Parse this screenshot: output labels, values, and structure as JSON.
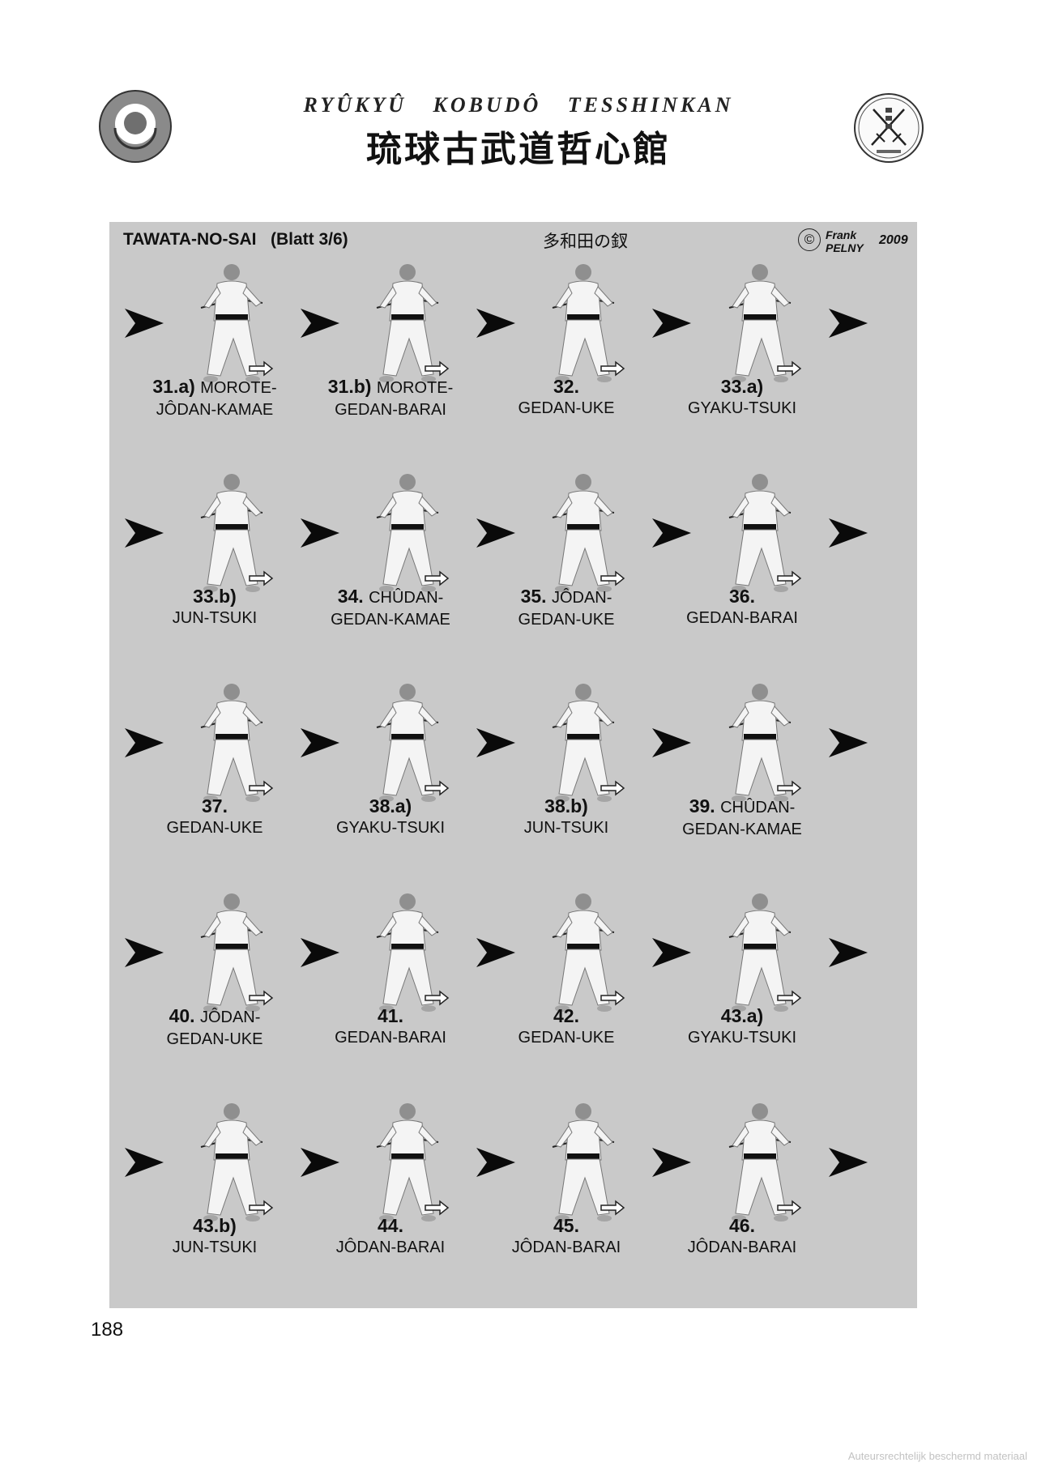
{
  "header": {
    "title": "RYÛKYÛ KOBUDÔ TESSHINKAN",
    "kanji": "琉球古武道哲心館"
  },
  "sheet": {
    "title": "TAWATA-NO-SAI   (Blatt 3/6)",
    "title_jp": "多和田の釵",
    "copyright_symbol": "©",
    "author_first": "Frank",
    "author_last": "PELNY",
    "year": "2009"
  },
  "rows": [
    {
      "steps": [
        {
          "num": "31.a)",
          "move": "MOROTE-",
          "name": "JÔDAN-KAMAE"
        },
        {
          "num": "31.b)",
          "move": "MOROTE-",
          "name": "GEDAN-BARAI"
        },
        {
          "num": "32.",
          "move": "",
          "name": "GEDAN-UKE"
        },
        {
          "num": "33.a)",
          "move": "",
          "name": "GYAKU-TSUKI"
        }
      ]
    },
    {
      "steps": [
        {
          "num": "33.b)",
          "move": "",
          "name": "JUN-TSUKI"
        },
        {
          "num": "34.",
          "move": "CHÛDAN-",
          "name": "GEDAN-KAMAE"
        },
        {
          "num": "35.",
          "move": "JÔDAN-",
          "name": "GEDAN-UKE"
        },
        {
          "num": "36.",
          "move": "",
          "name": "GEDAN-BARAI"
        }
      ]
    },
    {
      "steps": [
        {
          "num": "37.",
          "move": "",
          "name": "GEDAN-UKE"
        },
        {
          "num": "38.a)",
          "move": "",
          "name": "GYAKU-TSUKI"
        },
        {
          "num": "38.b)",
          "move": "",
          "name": "JUN-TSUKI"
        },
        {
          "num": "39.",
          "move": "CHÛDAN-",
          "name": "GEDAN-KAMAE"
        }
      ]
    },
    {
      "steps": [
        {
          "num": "40.",
          "move": "JÔDAN-",
          "name": "GEDAN-UKE"
        },
        {
          "num": "41.",
          "move": "",
          "name": "GEDAN-BARAI"
        },
        {
          "num": "42.",
          "move": "",
          "name": "GEDAN-UKE"
        },
        {
          "num": "43.a)",
          "move": "",
          "name": "GYAKU-TSUKI"
        }
      ]
    },
    {
      "steps": [
        {
          "num": "43.b)",
          "move": "",
          "name": "JUN-TSUKI"
        },
        {
          "num": "44.",
          "move": "",
          "name": "JÔDAN-BARAI"
        },
        {
          "num": "45.",
          "move": "",
          "name": "JÔDAN-BARAI"
        },
        {
          "num": "46.",
          "move": "",
          "name": "JÔDAN-BARAI"
        }
      ]
    }
  ],
  "footer": {
    "page_number": "188",
    "watermark": "Auteursrechtelijk beschermd materiaal"
  }
}
